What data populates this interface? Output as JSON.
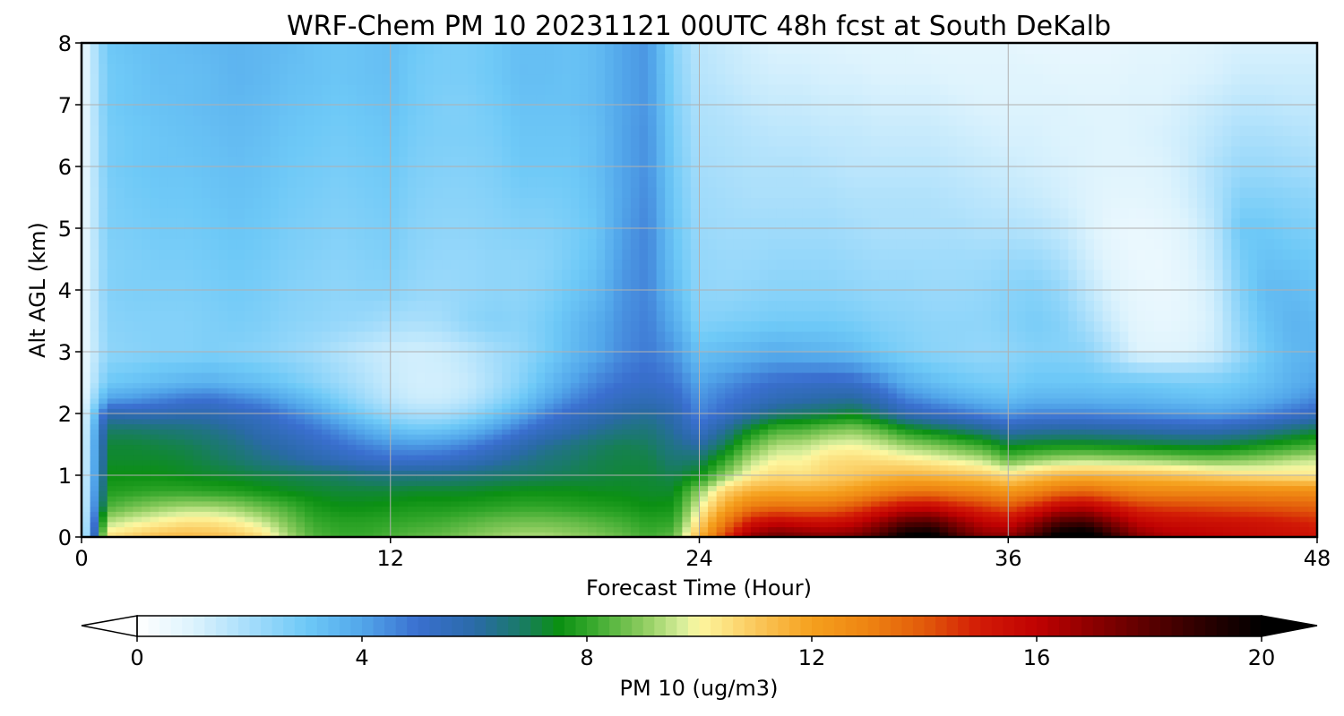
{
  "chart_data": {
    "type": "heatmap",
    "title": "WRF-Chem PM 10  20231121 00UTC 48h fcst at South DeKalb",
    "xlabel": "Forecast Time (Hour)",
    "ylabel": "Alt AGL (km)",
    "xlim": [
      0,
      48
    ],
    "ylim": [
      0,
      8
    ],
    "xticks": [
      0,
      12,
      24,
      36,
      48
    ],
    "yticks": [
      0,
      1,
      2,
      3,
      4,
      5,
      6,
      7,
      8
    ],
    "grid": true,
    "x": [
      0,
      1,
      2,
      3,
      4,
      5,
      6,
      7,
      8,
      9,
      10,
      11,
      12,
      13,
      14,
      15,
      16,
      17,
      18,
      19,
      20,
      21,
      22,
      23,
      24,
      25,
      26,
      27,
      28,
      29,
      30,
      31,
      32,
      33,
      34,
      35,
      36,
      37,
      38,
      39,
      40,
      41,
      42,
      43,
      44,
      45,
      46,
      47,
      48
    ],
    "y": [
      0,
      0.25,
      0.5,
      0.75,
      1,
      1.25,
      1.5,
      1.75,
      2,
      2.25,
      2.5,
      3,
      3.5,
      4,
      4.5,
      5,
      5.5,
      6,
      6.5,
      7,
      7.5,
      8
    ],
    "z_note": "rows correspond to y levels (bottom to top), columns to x (hours)",
    "z": [
      [
        0.5,
        10.5,
        10.9,
        11.3,
        11.4,
        11.3,
        11.1,
        10.6,
        9.3,
        8.4,
        8.1,
        8.1,
        8.3,
        8.5,
        8.6,
        8.9,
        9.1,
        9.3,
        9.3,
        9.1,
        8.9,
        8.6,
        8.2,
        8.5,
        11.5,
        14.5,
        17.0,
        17.8,
        17.5,
        17.2,
        17.5,
        18.5,
        20.2,
        20.5,
        18.5,
        17.2,
        17.0,
        18.5,
        20.5,
        21.0,
        19.0,
        17.2,
        16.5,
        16.2,
        16.0,
        15.8,
        15.6,
        15.5,
        15.3
      ],
      [
        0.5,
        9.4,
        9.8,
        10.1,
        10.4,
        10.4,
        10.1,
        9.6,
        8.8,
        8.1,
        7.9,
        7.9,
        8.0,
        8.1,
        8.2,
        8.4,
        8.6,
        8.7,
        8.7,
        8.6,
        8.4,
        8.2,
        7.9,
        8.0,
        10.6,
        13.2,
        15.2,
        15.8,
        15.5,
        15.4,
        15.8,
        16.8,
        18.0,
        18.2,
        17.0,
        16.0,
        15.6,
        16.8,
        18.3,
        18.5,
        17.2,
        16.0,
        15.6,
        15.5,
        15.4,
        15.3,
        15.2,
        15.0,
        14.8
      ],
      [
        0.5,
        8.3,
        8.7,
        9.0,
        9.2,
        9.2,
        9.0,
        8.6,
        8.2,
        7.7,
        7.5,
        7.5,
        7.6,
        7.7,
        7.7,
        7.8,
        7.9,
        8.0,
        8.0,
        7.9,
        7.8,
        7.7,
        7.5,
        7.6,
        9.8,
        11.8,
        13.2,
        13.5,
        13.4,
        13.5,
        14.0,
        14.8,
        15.5,
        15.6,
        15.0,
        14.5,
        14.0,
        14.8,
        15.8,
        16.0,
        15.3,
        14.6,
        14.4,
        14.3,
        14.2,
        14.1,
        14.0,
        13.9,
        13.8
      ],
      [
        0.5,
        7.8,
        7.9,
        8.0,
        8.0,
        7.9,
        7.8,
        7.6,
        7.4,
        7.3,
        7.2,
        7.2,
        7.2,
        7.3,
        7.3,
        7.3,
        7.4,
        7.5,
        7.5,
        7.5,
        7.4,
        7.4,
        7.3,
        7.3,
        9.0,
        10.8,
        11.6,
        11.8,
        11.7,
        11.8,
        12.2,
        12.8,
        13.2,
        13.3,
        13.0,
        12.8,
        12.3,
        12.8,
        13.5,
        13.7,
        13.3,
        12.9,
        12.8,
        12.8,
        12.8,
        12.8,
        12.7,
        12.7,
        12.6
      ],
      [
        0.5,
        7.5,
        7.5,
        7.5,
        7.4,
        7.3,
        7.2,
        7.1,
        7.0,
        6.9,
        6.8,
        6.6,
        6.5,
        6.5,
        6.5,
        6.6,
        6.7,
        6.8,
        6.9,
        7.0,
        7.1,
        7.2,
        7.2,
        7.0,
        7.5,
        9.0,
        10.2,
        10.6,
        10.5,
        10.8,
        11.0,
        11.3,
        11.5,
        11.4,
        11.2,
        11.0,
        10.5,
        11.0,
        11.4,
        11.5,
        11.4,
        11.3,
        11.2,
        11.0,
        10.8,
        10.6,
        10.5,
        10.4,
        10.3
      ],
      [
        0.5,
        7.3,
        7.3,
        7.3,
        7.2,
        7.0,
        6.8,
        6.5,
        6.2,
        5.9,
        5.6,
        5.3,
        5.1,
        5.1,
        5.2,
        5.5,
        5.9,
        6.3,
        6.6,
        6.8,
        7.0,
        7.1,
        7.1,
        6.7,
        6.8,
        8.0,
        9.4,
        10.0,
        10.0,
        10.5,
        10.6,
        10.5,
        10.3,
        10.1,
        9.8,
        9.5,
        8.6,
        9.0,
        9.3,
        9.4,
        9.3,
        9.2,
        9.1,
        8.9,
        8.8,
        8.9,
        9.1,
        9.4,
        9.6
      ],
      [
        0.5,
        7.2,
        7.2,
        7.1,
        7.0,
        6.8,
        6.5,
        6.1,
        5.8,
        5.4,
        5.0,
        4.6,
        4.3,
        4.2,
        4.3,
        4.6,
        5.1,
        5.7,
        6.2,
        6.5,
        6.8,
        7.0,
        6.9,
        6.4,
        6.0,
        7.0,
        8.5,
        9.3,
        9.4,
        9.8,
        9.9,
        9.6,
        9.1,
        8.8,
        8.4,
        8.0,
        7.2,
        7.4,
        7.5,
        7.5,
        7.4,
        7.3,
        7.2,
        7.1,
        7.1,
        7.3,
        7.6,
        7.9,
        8.2
      ],
      [
        0.5,
        6.8,
        6.8,
        6.7,
        6.6,
        6.4,
        6.1,
        5.7,
        5.3,
        4.9,
        4.4,
        3.8,
        3.3,
        3.0,
        3.1,
        3.5,
        4.1,
        4.8,
        5.4,
        5.8,
        6.2,
        6.5,
        6.6,
        6.1,
        5.2,
        6.2,
        7.4,
        8.2,
        8.3,
        8.7,
        8.9,
        8.4,
        7.6,
        7.2,
        6.8,
        6.4,
        5.8,
        6.0,
        6.1,
        6.1,
        6.0,
        5.9,
        5.8,
        5.7,
        5.7,
        5.9,
        6.2,
        6.6,
        7.0
      ],
      [
        0.5,
        5.8,
        5.7,
        5.7,
        5.8,
        5.8,
        5.5,
        5.3,
        4.7,
        4.2,
        3.5,
        2.8,
        2.2,
        1.9,
        1.9,
        2.3,
        3.0,
        3.8,
        4.6,
        5.2,
        5.6,
        6.0,
        6.2,
        5.8,
        4.6,
        5.2,
        6.0,
        6.6,
        6.8,
        7.0,
        7.3,
        6.6,
        5.7,
        5.3,
        5.0,
        4.6,
        4.3,
        4.6,
        4.6,
        4.6,
        4.5,
        4.4,
        4.3,
        4.2,
        4.1,
        4.3,
        4.6,
        5.0,
        5.4
      ],
      [
        0.5,
        4.0,
        4.2,
        4.5,
        4.8,
        4.9,
        4.6,
        4.3,
        3.8,
        3.3,
        2.7,
        2.1,
        1.6,
        1.3,
        1.3,
        1.6,
        2.2,
        2.9,
        3.8,
        4.5,
        5.0,
        5.4,
        5.6,
        5.3,
        4.3,
        4.8,
        5.2,
        5.6,
        5.8,
        6.0,
        6.1,
        5.5,
        4.6,
        4.2,
        3.8,
        3.5,
        3.3,
        3.6,
        3.6,
        3.6,
        3.5,
        3.5,
        3.4,
        3.3,
        3.2,
        3.4,
        3.7,
        4.1,
        4.5
      ],
      [
        0.5,
        3.0,
        3.2,
        3.4,
        3.6,
        3.7,
        3.5,
        3.3,
        3.0,
        2.6,
        2.2,
        1.8,
        1.4,
        1.2,
        1.2,
        1.4,
        1.9,
        2.5,
        3.3,
        4.0,
        4.6,
        5.0,
        5.2,
        4.9,
        4.0,
        4.4,
        4.8,
        5.1,
        5.2,
        5.3,
        5.2,
        4.6,
        3.8,
        3.4,
        3.1,
        2.9,
        2.8,
        3.1,
        3.1,
        3.1,
        3.0,
        3.0,
        2.9,
        2.8,
        2.8,
        3.0,
        3.3,
        3.7,
        4.0
      ],
      [
        0.5,
        2.4,
        2.5,
        2.6,
        2.6,
        2.7,
        2.6,
        2.5,
        2.3,
        2.1,
        1.8,
        1.5,
        1.3,
        1.2,
        1.3,
        1.6,
        2.0,
        2.3,
        2.8,
        3.4,
        3.9,
        4.5,
        4.8,
        4.3,
        3.2,
        3.4,
        3.6,
        3.8,
        3.7,
        3.6,
        3.4,
        3.0,
        2.7,
        2.5,
        2.4,
        2.3,
        2.4,
        2.6,
        2.6,
        2.5,
        1.8,
        1.0,
        0.9,
        1.0,
        1.3,
        2.2,
        3.0,
        3.5,
        3.6
      ],
      [
        0.5,
        2.5,
        2.6,
        2.6,
        2.6,
        2.7,
        2.8,
        2.7,
        2.5,
        2.4,
        2.3,
        2.2,
        2.0,
        1.9,
        2.0,
        2.4,
        2.6,
        2.5,
        2.8,
        3.3,
        3.8,
        4.4,
        4.7,
        3.8,
        2.6,
        2.7,
        2.8,
        2.9,
        2.9,
        2.9,
        2.8,
        2.6,
        2.5,
        2.4,
        2.4,
        2.4,
        2.6,
        2.8,
        2.6,
        2.0,
        1.3,
        0.8,
        0.7,
        0.8,
        1.2,
        2.4,
        3.2,
        3.6,
        3.5
      ],
      [
        0.5,
        2.6,
        2.7,
        2.7,
        2.7,
        2.8,
        2.9,
        2.8,
        2.6,
        2.5,
        2.4,
        2.5,
        2.5,
        2.3,
        2.2,
        2.3,
        2.4,
        2.4,
        2.6,
        3.0,
        3.4,
        4.3,
        4.6,
        3.4,
        2.4,
        2.3,
        2.4,
        2.5,
        2.5,
        2.5,
        2.4,
        2.3,
        2.3,
        2.2,
        2.2,
        2.3,
        2.5,
        2.6,
        2.3,
        1.6,
        1.0,
        0.7,
        0.6,
        0.8,
        1.3,
        2.6,
        3.4,
        3.4,
        3.2
      ],
      [
        0.5,
        2.6,
        2.7,
        2.8,
        2.8,
        2.9,
        3.0,
        2.9,
        2.7,
        2.6,
        2.5,
        2.6,
        2.7,
        2.4,
        2.3,
        2.3,
        2.4,
        2.4,
        2.5,
        2.8,
        3.2,
        4.2,
        4.6,
        3.2,
        2.3,
        2.2,
        2.2,
        2.3,
        2.3,
        2.3,
        2.2,
        2.1,
        2.1,
        2.1,
        2.1,
        2.1,
        2.2,
        2.2,
        1.9,
        1.3,
        0.8,
        0.6,
        0.6,
        0.9,
        1.5,
        2.8,
        3.2,
        3.1,
        3.0
      ],
      [
        0.5,
        2.7,
        2.8,
        2.9,
        2.9,
        3.0,
        3.1,
        3.0,
        2.8,
        2.7,
        2.6,
        2.7,
        2.8,
        2.5,
        2.4,
        2.4,
        2.5,
        2.6,
        2.6,
        2.8,
        3.1,
        4.1,
        4.6,
        3.1,
        2.2,
        2.1,
        2.1,
        2.1,
        2.1,
        2.1,
        2.0,
        1.9,
        1.9,
        1.9,
        1.9,
        1.8,
        1.8,
        1.7,
        1.5,
        1.1,
        0.7,
        0.6,
        0.7,
        1.0,
        1.6,
        3.0,
        3.0,
        2.8,
        2.7
      ],
      [
        0.5,
        2.7,
        2.9,
        3.0,
        3.0,
        3.1,
        3.2,
        3.1,
        2.9,
        2.8,
        2.7,
        2.8,
        2.9,
        2.6,
        2.5,
        2.5,
        2.6,
        2.8,
        2.8,
        2.9,
        3.2,
        4.0,
        4.5,
        3.0,
        2.1,
        2.0,
        1.9,
        1.9,
        1.9,
        1.9,
        1.8,
        1.8,
        1.8,
        1.8,
        1.7,
        1.6,
        1.5,
        1.4,
        1.2,
        1.0,
        0.8,
        0.8,
        0.9,
        1.2,
        1.8,
        2.6,
        2.6,
        2.5,
        2.4
      ],
      [
        0.5,
        2.8,
        3.0,
        3.1,
        3.1,
        3.2,
        3.3,
        3.2,
        3.0,
        2.9,
        2.8,
        2.9,
        3.0,
        2.7,
        2.6,
        2.6,
        2.7,
        3.0,
        3.0,
        3.0,
        3.3,
        4.0,
        4.4,
        2.9,
        2.0,
        1.9,
        1.8,
        1.8,
        1.8,
        1.7,
        1.6,
        1.6,
        1.6,
        1.6,
        1.5,
        1.4,
        1.3,
        1.2,
        1.1,
        1.0,
        0.9,
        0.9,
        1.0,
        1.3,
        1.8,
        2.2,
        2.2,
        2.1,
        2.0
      ],
      [
        0.5,
        2.8,
        3.0,
        3.1,
        3.2,
        3.3,
        3.4,
        3.3,
        3.1,
        3.0,
        2.9,
        3.0,
        3.1,
        2.8,
        2.7,
        2.7,
        2.8,
        3.1,
        3.1,
        3.1,
        3.3,
        4.0,
        4.4,
        2.8,
        1.9,
        1.8,
        1.7,
        1.6,
        1.6,
        1.5,
        1.5,
        1.4,
        1.4,
        1.4,
        1.3,
        1.2,
        1.1,
        1.1,
        1.0,
        1.0,
        0.9,
        1.0,
        1.1,
        1.3,
        1.6,
        1.9,
        1.9,
        1.8,
        1.7
      ],
      [
        0.5,
        2.9,
        3.1,
        3.2,
        3.3,
        3.4,
        3.5,
        3.4,
        3.2,
        3.1,
        3.0,
        3.1,
        3.2,
        2.9,
        2.7,
        2.7,
        2.9,
        3.2,
        3.2,
        3.2,
        3.4,
        4.0,
        4.3,
        2.7,
        1.8,
        1.7,
        1.5,
        1.4,
        1.4,
        1.3,
        1.3,
        1.2,
        1.2,
        1.2,
        1.1,
        1.0,
        1.0,
        1.0,
        1.0,
        0.9,
        0.9,
        1.0,
        1.0,
        1.2,
        1.4,
        1.6,
        1.6,
        1.5,
        1.5
      ],
      [
        0.5,
        2.9,
        3.1,
        3.3,
        3.3,
        3.4,
        3.6,
        3.5,
        3.3,
        3.2,
        3.1,
        3.2,
        3.3,
        2.9,
        2.8,
        2.8,
        3.0,
        3.3,
        3.3,
        3.2,
        3.4,
        4.0,
        4.3,
        2.6,
        1.7,
        1.5,
        1.3,
        1.2,
        1.2,
        1.1,
        1.1,
        1.0,
        1.0,
        1.0,
        0.9,
        0.9,
        0.9,
        0.9,
        0.8,
        0.8,
        0.8,
        0.9,
        0.9,
        1.0,
        1.1,
        1.3,
        1.3,
        1.3,
        1.3
      ],
      [
        0.5,
        3.0,
        3.2,
        3.3,
        3.4,
        3.5,
        3.6,
        3.5,
        3.4,
        3.2,
        3.1,
        3.2,
        3.3,
        3.0,
        2.8,
        2.8,
        3.0,
        3.3,
        3.3,
        3.2,
        3.4,
        4.0,
        4.3,
        2.5,
        1.6,
        1.4,
        1.2,
        1.0,
        1.0,
        1.0,
        0.9,
        0.9,
        0.9,
        0.8,
        0.8,
        0.8,
        0.8,
        0.7,
        0.7,
        0.7,
        0.7,
        0.8,
        0.8,
        0.9,
        1.0,
        1.1,
        1.1,
        1.1,
        1.1
      ]
    ],
    "colorbar": {
      "label": "PM 10  (ug/m3)",
      "min": 0,
      "max": 20,
      "ticks": [
        0,
        4,
        8,
        12,
        16,
        20
      ],
      "extend": "both",
      "orientation": "horizontal",
      "colors": [
        {
          "v": 0,
          "c": "#ffffff"
        },
        {
          "v": 1,
          "c": "#ddf3fd"
        },
        {
          "v": 2,
          "c": "#a5ddfb"
        },
        {
          "v": 3,
          "c": "#6ec9f7"
        },
        {
          "v": 4,
          "c": "#52a6ea"
        },
        {
          "v": 5,
          "c": "#3a6fcf"
        },
        {
          "v": 6,
          "c": "#2a6aa8"
        },
        {
          "v": 6.8,
          "c": "#1a7a6a"
        },
        {
          "v": 7.5,
          "c": "#0b9013"
        },
        {
          "v": 8,
          "c": "#2fa528"
        },
        {
          "v": 9,
          "c": "#8dcc5f"
        },
        {
          "v": 9.7,
          "c": "#d8ee9a"
        },
        {
          "v": 10,
          "c": "#fdf7a0"
        },
        {
          "v": 11,
          "c": "#fbc85c"
        },
        {
          "v": 12,
          "c": "#f5a01d"
        },
        {
          "v": 13,
          "c": "#ee8412"
        },
        {
          "v": 14,
          "c": "#e25a0a"
        },
        {
          "v": 15,
          "c": "#d21a06"
        },
        {
          "v": 16,
          "c": "#c00202"
        },
        {
          "v": 17,
          "c": "#8c0000"
        },
        {
          "v": 18,
          "c": "#5a0000"
        },
        {
          "v": 19,
          "c": "#2a0000"
        },
        {
          "v": 20,
          "c": "#000000"
        }
      ]
    }
  }
}
